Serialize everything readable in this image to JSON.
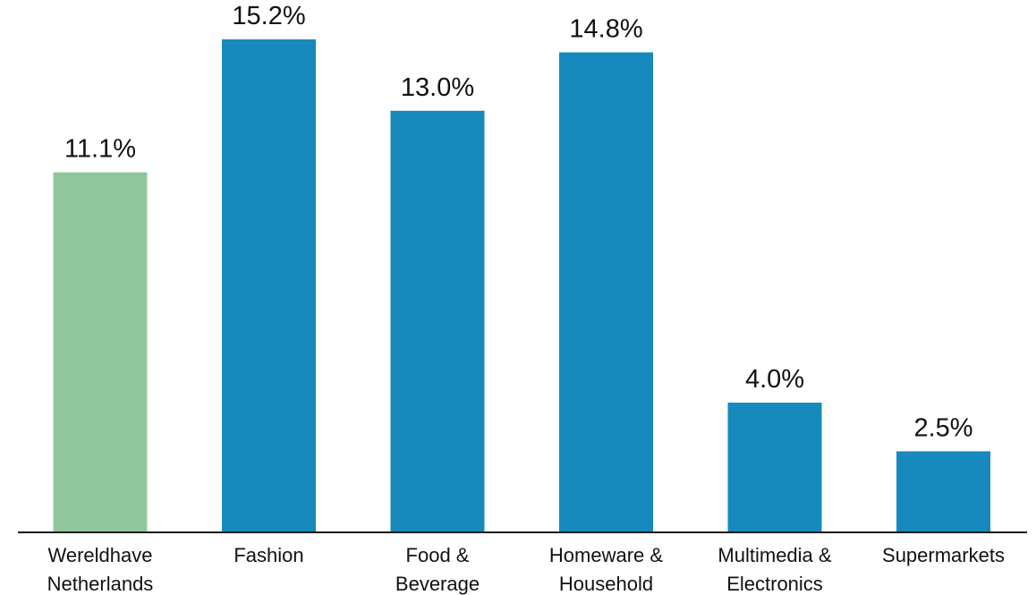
{
  "chart_data": {
    "type": "bar",
    "categories": [
      [
        "Wereldhave",
        "Netherlands"
      ],
      [
        "Fashion"
      ],
      [
        "Food &",
        "Beverage"
      ],
      [
        "Homeware &",
        "Household"
      ],
      [
        "Multimedia &",
        "Electronics"
      ],
      [
        "Supermarkets"
      ]
    ],
    "values": [
      11.1,
      15.2,
      13.0,
      14.8,
      4.0,
      2.5
    ],
    "value_labels": [
      "11.1%",
      "15.2%",
      "13.0%",
      "14.8%",
      "4.0%",
      "2.5%"
    ],
    "bar_colors": [
      "#8fc79a",
      "#1789bc",
      "#1789bc",
      "#1789bc",
      "#1789bc",
      "#1789bc"
    ],
    "axis_color": "#1a1a1a",
    "ylim": [
      0,
      16
    ],
    "grid": false,
    "legend": "none",
    "title": "",
    "xlabel": "",
    "ylabel": ""
  }
}
